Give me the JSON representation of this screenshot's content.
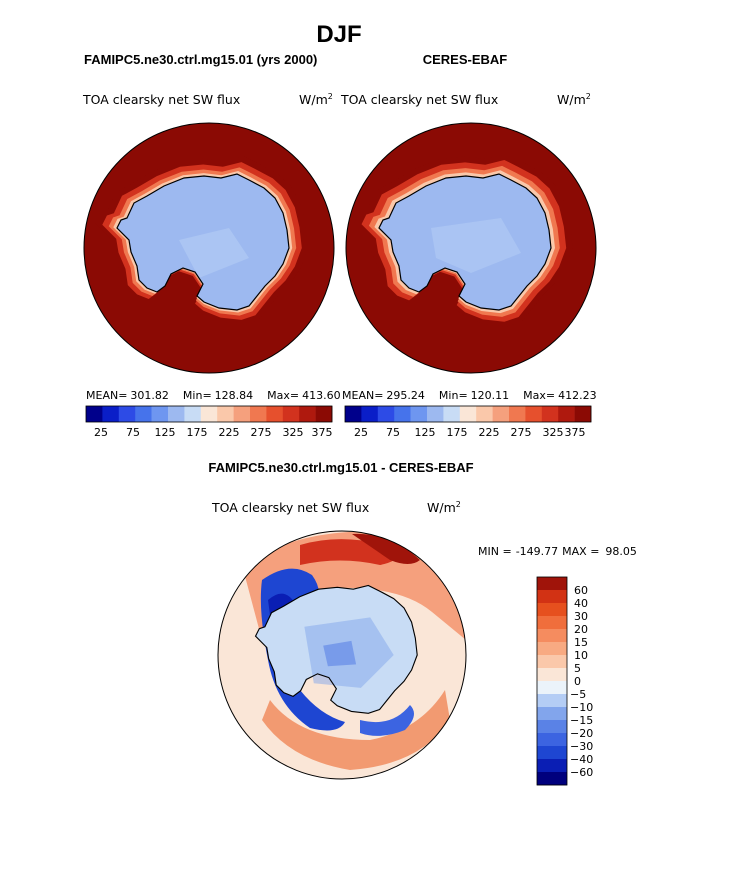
{
  "page": {
    "season": "DJF"
  },
  "colors": {
    "dark_red": "#8b0a04",
    "ice_blue": "#9db9f0",
    "land_outline": "#000000"
  },
  "icons": {
    "continent": "antarctica-outline-icon"
  },
  "chart_data": [
    {
      "type": "heatmap",
      "projection": "south-polar-stereographic",
      "case_title": "FAMIPC5.ne30.ctrl.mg15.01 (yrs 2000)",
      "variable": "TOA clearsky net SW flux",
      "units_base": "W/m",
      "units_exp": "2",
      "stats": {
        "mean_label": "MEAN=",
        "mean": "301.82",
        "min_label": "Min=",
        "min": "128.84",
        "max_label": "Max=",
        "max": "413.60"
      },
      "colorbar": {
        "colors": [
          "#00008b",
          "#0a1ec8",
          "#2d4be6",
          "#4673eb",
          "#6e96f0",
          "#9db9f0",
          "#c8dcf5",
          "#fae6d7",
          "#fac8aa",
          "#f5a07d",
          "#f07850",
          "#e6502d",
          "#d2321e",
          "#af190e",
          "#8b0a04"
        ],
        "tick_labels": [
          "25",
          "75",
          "125",
          "175",
          "225",
          "275",
          "325",
          "375"
        ],
        "tick_values": [
          25,
          75,
          125,
          175,
          225,
          275,
          325,
          375
        ],
        "levels_min": 0,
        "levels_max": 400,
        "interval": 25
      },
      "regions": {
        "ocean_value": 395,
        "ice_sheet_value": 145,
        "sea_ice_edge_values": [
          350,
          300,
          250,
          210
        ]
      }
    },
    {
      "type": "heatmap",
      "projection": "south-polar-stereographic",
      "case_title": "CERES-EBAF",
      "variable": "TOA clearsky net SW flux",
      "units_base": "W/m",
      "units_exp": "2",
      "stats": {
        "mean_label": "MEAN=",
        "mean": "295.24",
        "min_label": "Min=",
        "min": "120.11",
        "max_label": "Max=",
        "max": "412.23"
      },
      "colorbar": {
        "colors": [
          "#00008b",
          "#0a1ec8",
          "#2d4be6",
          "#4673eb",
          "#6e96f0",
          "#9db9f0",
          "#c8dcf5",
          "#fae6d7",
          "#fac8aa",
          "#f5a07d",
          "#f07850",
          "#e6502d",
          "#d2321e",
          "#af190e",
          "#8b0a04"
        ],
        "tick_labels": [
          "25",
          "75",
          "125",
          "175",
          "225",
          "275",
          "325",
          "375"
        ],
        "tick_values": [
          25,
          75,
          125,
          175,
          225,
          275,
          325,
          375
        ],
        "levels_min": 0,
        "levels_max": 400,
        "interval": 25
      },
      "regions": {
        "ocean_value": 395,
        "ice_sheet_value": 140,
        "sea_ice_edge_values": [
          350,
          310,
          260,
          220
        ]
      }
    },
    {
      "type": "heatmap",
      "projection": "south-polar-stereographic",
      "case_title": "FAMIPC5.ne30.ctrl.mg15.01 - CERES-EBAF",
      "variable": "TOA clearsky net SW flux",
      "units_base": "W/m",
      "units_exp": "2",
      "stats": {
        "min_label": "MIN =",
        "min": "-149.77",
        "max_label": "MAX =",
        "max": "98.05"
      },
      "colorbar": {
        "colors": [
          "#00007d",
          "#0a1eb4",
          "#1e46d2",
          "#3c64e1",
          "#5a82e6",
          "#82a5ec",
          "#b4cdf5",
          "#ebf3fa",
          "#fae6d7",
          "#fac8aa",
          "#f8aa82",
          "#f58c5f",
          "#f06e3c",
          "#e6501e",
          "#d23214",
          "#a0140a"
        ],
        "tick_labels": [
          "60",
          "40",
          "30",
          "20",
          "15",
          "10",
          "5",
          "0",
          "−5",
          "−10",
          "−15",
          "−20",
          "−30",
          "−40",
          "−60"
        ],
        "tick_values": [
          60,
          40,
          30,
          20,
          15,
          10,
          5,
          0,
          -5,
          -10,
          -15,
          -20,
          -30,
          -40,
          -60
        ]
      }
    }
  ]
}
